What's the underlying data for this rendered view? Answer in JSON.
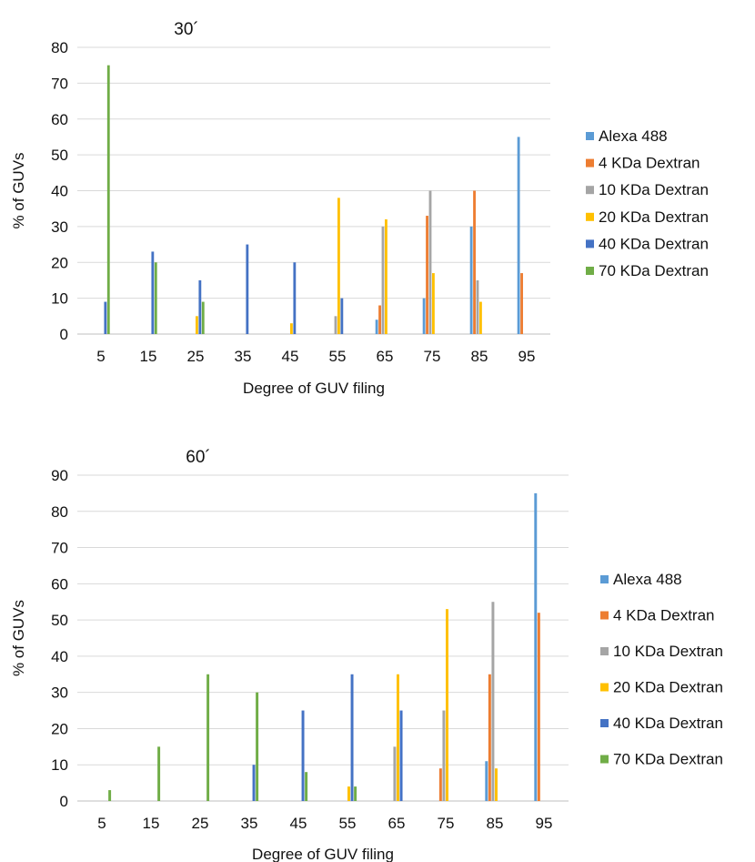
{
  "chart_data": [
    {
      "type": "bar",
      "title": "30´",
      "xlabel": "Degree of GUV filing",
      "ylabel": "% of GUVs",
      "ylim": [
        0,
        80
      ],
      "yticks": [
        0,
        10,
        20,
        30,
        40,
        50,
        60,
        70,
        80
      ],
      "grid": true,
      "legend": "right",
      "categories": [
        "5",
        "15",
        "25",
        "35",
        "45",
        "55",
        "65",
        "75",
        "85",
        "95"
      ],
      "series": [
        {
          "name": "Alexa 488",
          "color": "#5b9bd5",
          "values": [
            0,
            0,
            0,
            0,
            0,
            0,
            4,
            10,
            30,
            55
          ]
        },
        {
          "name": "4 KDa Dextran",
          "color": "#ed7d31",
          "values": [
            0,
            0,
            0,
            0,
            0,
            0,
            8,
            33,
            40,
            17
          ]
        },
        {
          "name": "10 KDa Dextran",
          "color": "#a5a5a5",
          "values": [
            0,
            0,
            0,
            0,
            0,
            5,
            30,
            40,
            15,
            0
          ]
        },
        {
          "name": "20 KDa Dextran",
          "color": "#ffc000",
          "values": [
            0,
            0,
            5,
            0,
            3,
            38,
            32,
            17,
            9,
            0
          ]
        },
        {
          "name": "40 KDa Dextran",
          "color": "#4472c4",
          "values": [
            9,
            23,
            15,
            25,
            20,
            10,
            0,
            0,
            0,
            0
          ]
        },
        {
          "name": "70 KDa Dextran",
          "color": "#70ad47",
          "values": [
            75,
            20,
            9,
            0,
            0,
            0,
            0,
            0,
            0,
            0
          ]
        }
      ]
    },
    {
      "type": "bar",
      "title": "60´",
      "xlabel": "Degree of GUV filing",
      "ylabel": "% of GUVs",
      "ylim": [
        0,
        90
      ],
      "yticks": [
        0,
        10,
        20,
        30,
        40,
        50,
        60,
        70,
        80,
        90
      ],
      "grid": true,
      "legend": "right",
      "categories": [
        "5",
        "15",
        "25",
        "35",
        "45",
        "55",
        "65",
        "75",
        "85",
        "95"
      ],
      "series": [
        {
          "name": "Alexa 488",
          "color": "#5b9bd5",
          "values": [
            0,
            0,
            0,
            0,
            0,
            0,
            0,
            0,
            11,
            85
          ]
        },
        {
          "name": "4 KDa Dextran",
          "color": "#ed7d31",
          "values": [
            0,
            0,
            0,
            0,
            0,
            0,
            0,
            9,
            35,
            52
          ]
        },
        {
          "name": "10 KDa Dextran",
          "color": "#a5a5a5",
          "values": [
            0,
            0,
            0,
            0,
            0,
            0,
            15,
            25,
            55,
            0
          ]
        },
        {
          "name": "20 KDa Dextran",
          "color": "#ffc000",
          "values": [
            0,
            0,
            0,
            0,
            0,
            4,
            35,
            53,
            9,
            0
          ]
        },
        {
          "name": "40 KDa Dextran",
          "color": "#4472c4",
          "values": [
            0,
            0,
            0,
            10,
            25,
            35,
            25,
            0,
            0,
            0
          ]
        },
        {
          "name": "70 KDa Dextran",
          "color": "#70ad47",
          "values": [
            3,
            15,
            35,
            30,
            8,
            4,
            0,
            0,
            0,
            0
          ]
        }
      ]
    }
  ]
}
